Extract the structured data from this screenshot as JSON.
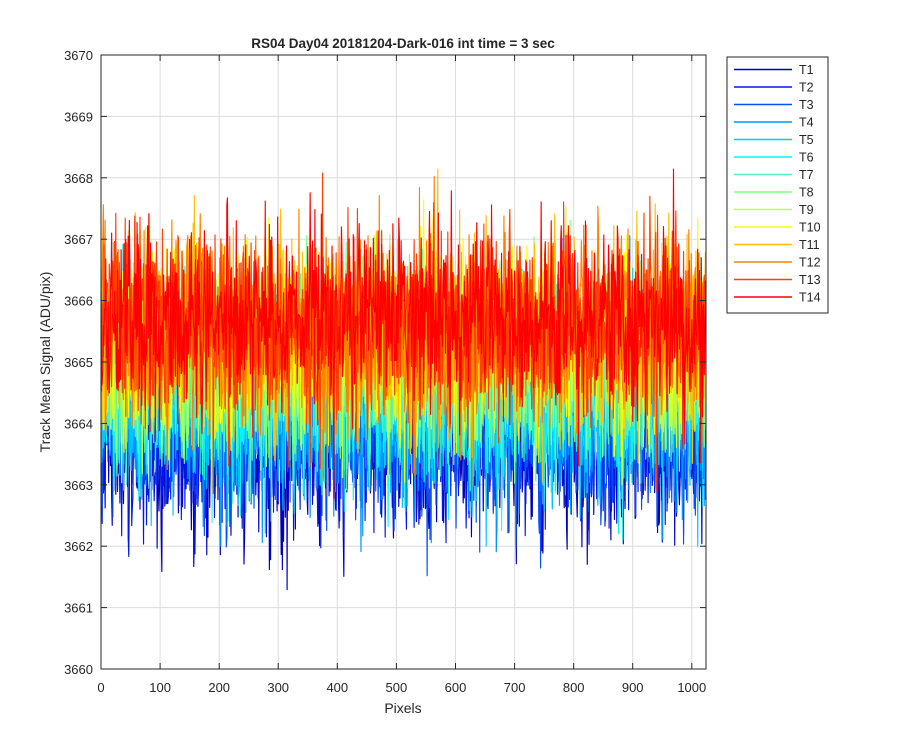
{
  "chart_data": {
    "type": "line",
    "title": "RS04 Day04 20181204-Dark-016 int time = 3 sec",
    "xlabel": "Pixels",
    "ylabel": "Track Mean Signal (ADU/pix)",
    "xlim": [
      0,
      1024
    ],
    "ylim": [
      3660,
      3670
    ],
    "xticks": [
      0,
      100,
      200,
      300,
      400,
      500,
      600,
      700,
      800,
      900,
      1000
    ],
    "yticks": [
      3660,
      3661,
      3662,
      3663,
      3664,
      3665,
      3666,
      3667,
      3668,
      3669,
      3670
    ],
    "grid": true,
    "legend_position": "outside-top-right",
    "series": [
      {
        "name": "T1",
        "color": "#0000BF",
        "mean": 3663.7,
        "spread": 0.9,
        "min": 3660.9,
        "max": 3667.0
      },
      {
        "name": "T2",
        "color": "#0018E6",
        "mean": 3663.8,
        "spread": 0.9,
        "min": 3661.1,
        "max": 3667.1
      },
      {
        "name": "T3",
        "color": "#0050FF",
        "mean": 3664.0,
        "spread": 0.9,
        "min": 3661.5,
        "max": 3667.3
      },
      {
        "name": "T4",
        "color": "#0095FF",
        "mean": 3664.3,
        "spread": 0.9,
        "min": 3661.8,
        "max": 3669.1
      },
      {
        "name": "T5",
        "color": "#00C8FF",
        "mean": 3664.4,
        "spread": 0.9,
        "min": 3662.0,
        "max": 3667.6
      },
      {
        "name": "T6",
        "color": "#10F0F0",
        "mean": 3664.6,
        "spread": 0.9,
        "min": 3662.1,
        "max": 3667.8
      },
      {
        "name": "T7",
        "color": "#50F0C0",
        "mean": 3664.8,
        "spread": 0.9,
        "min": 3662.2,
        "max": 3667.9
      },
      {
        "name": "T8",
        "color": "#80FF80",
        "mean": 3665.0,
        "spread": 0.9,
        "min": 3662.4,
        "max": 3668.7
      },
      {
        "name": "T9",
        "color": "#C0FF40",
        "mean": 3665.1,
        "spread": 0.9,
        "min": 3662.5,
        "max": 3668.3
      },
      {
        "name": "T10",
        "color": "#FFFF00",
        "mean": 3665.3,
        "spread": 0.9,
        "min": 3662.1,
        "max": 3668.8
      },
      {
        "name": "T11",
        "color": "#FFC000",
        "mean": 3665.4,
        "spread": 0.9,
        "min": 3662.5,
        "max": 3668.4
      },
      {
        "name": "T12",
        "color": "#FF8000",
        "mean": 3665.5,
        "spread": 0.9,
        "min": 3662.3,
        "max": 3668.4
      },
      {
        "name": "T13",
        "color": "#FF4000",
        "mean": 3665.6,
        "spread": 0.9,
        "min": 3662.2,
        "max": 3668.4
      },
      {
        "name": "T14",
        "color": "#FF0000",
        "mean": 3665.7,
        "spread": 0.9,
        "min": 3662.0,
        "max": 3668.5
      }
    ]
  }
}
